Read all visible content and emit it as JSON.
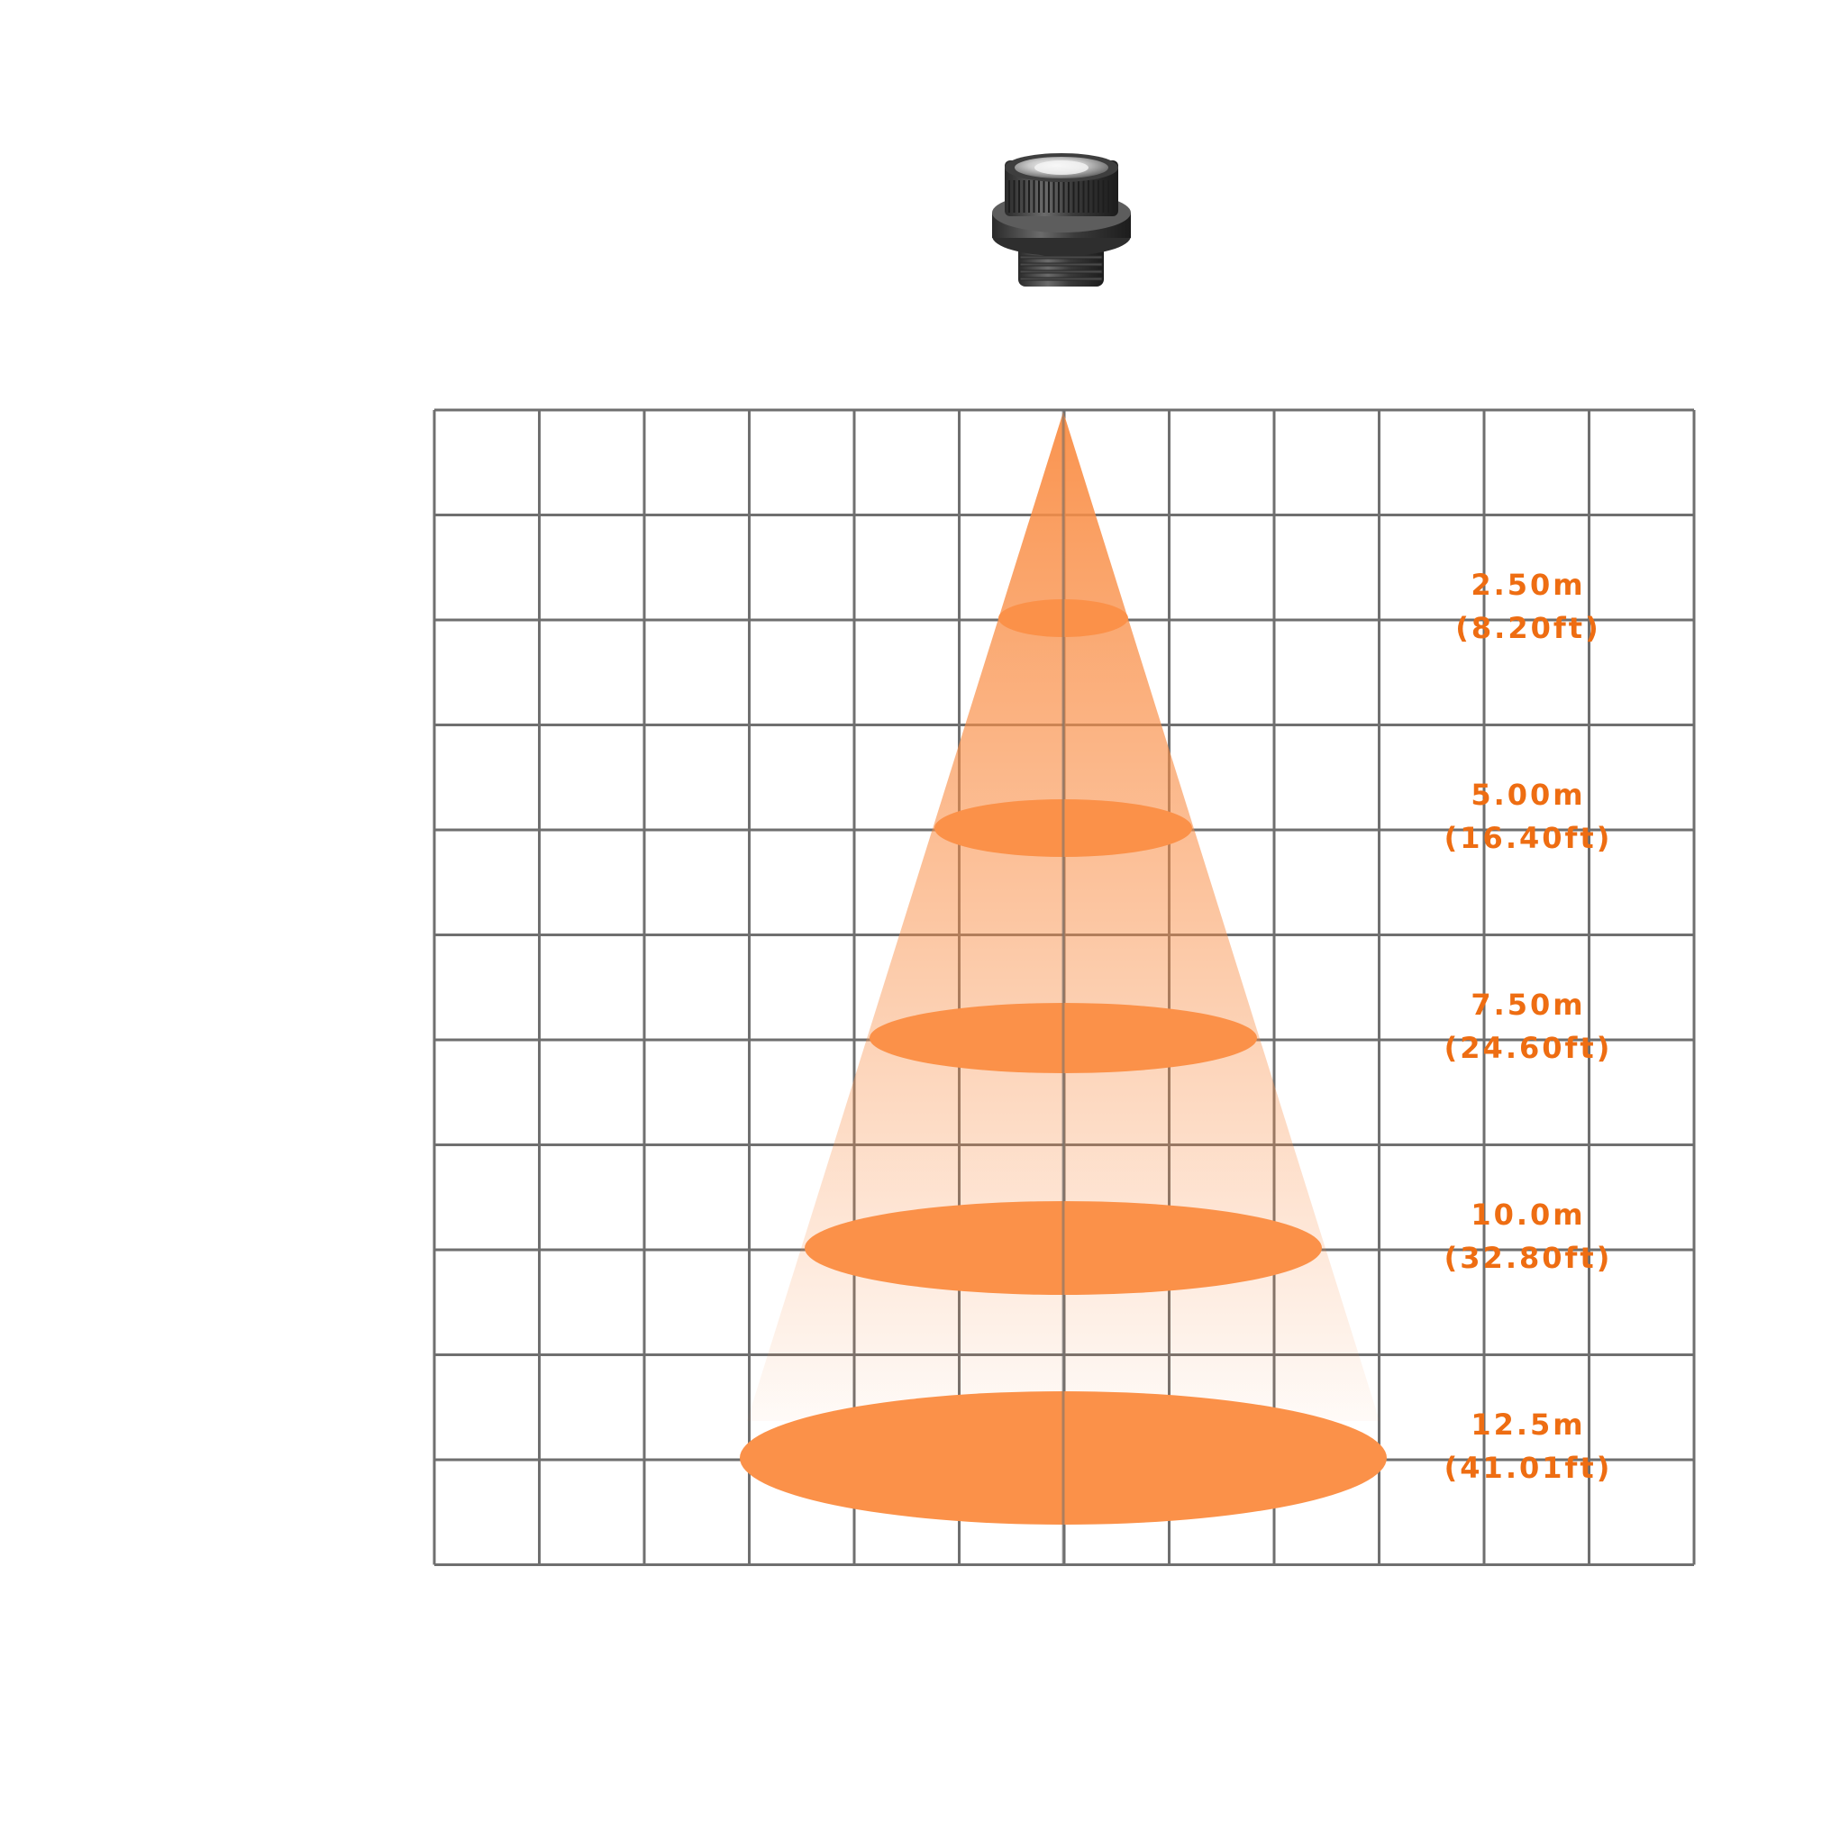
{
  "device": {
    "icon": "spotlight-fixture-icon"
  },
  "colors": {
    "accent": "#f47a20",
    "spot_fill": "#fb9149",
    "beam": "#f98e46",
    "grid": "#6f6f6f",
    "label": "#ee6d12"
  },
  "grid": {
    "columns": 12,
    "rows": 11
  },
  "beam_levels": [
    {
      "distance": "2.50m",
      "imperial": "(8.20ft)"
    },
    {
      "distance": "5.00m",
      "imperial": "(16.40ft)"
    },
    {
      "distance": "7.50m",
      "imperial": "(24.60ft)"
    },
    {
      "distance": "10.0m",
      "imperial": "(32.80ft)"
    },
    {
      "distance": "12.5m",
      "imperial": "(41.01ft)"
    }
  ]
}
